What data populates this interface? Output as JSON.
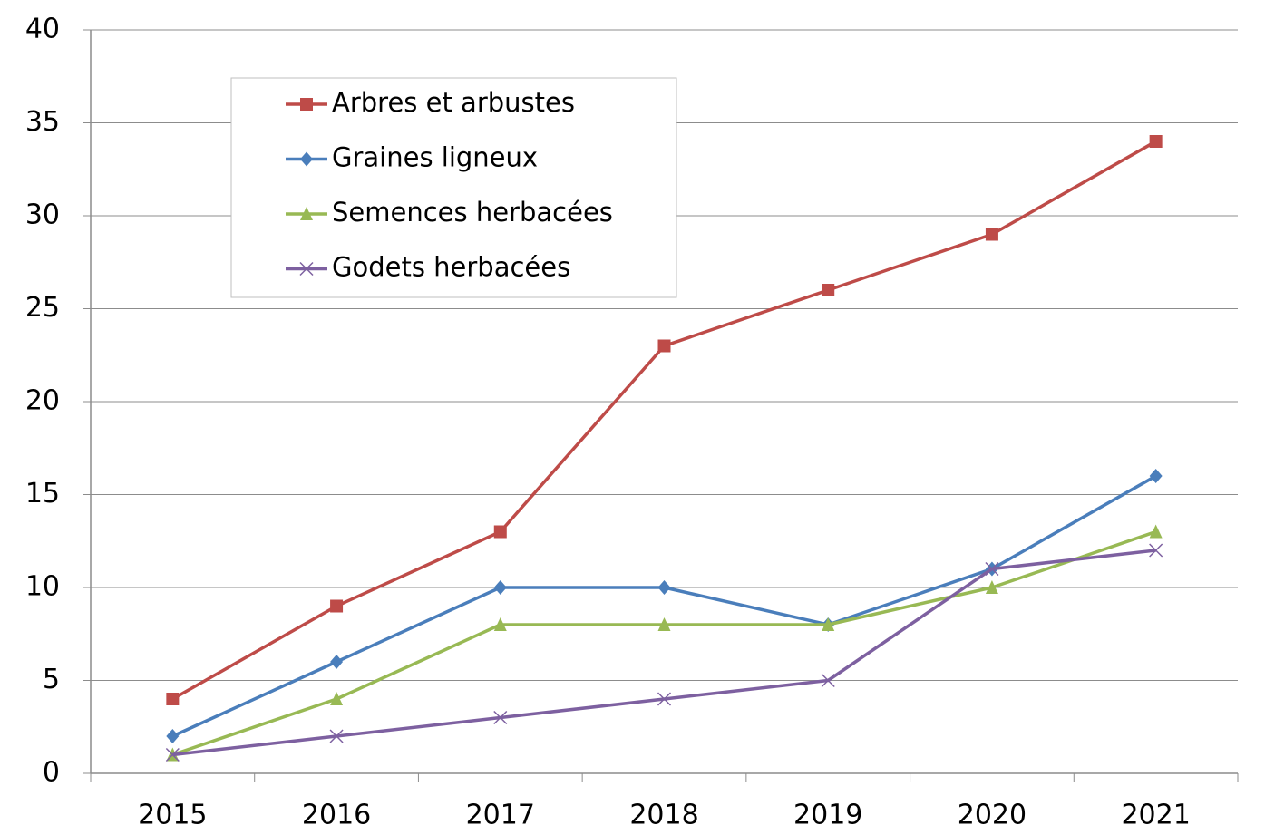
{
  "chart_data": {
    "type": "line",
    "categories": [
      "2015",
      "2016",
      "2017",
      "2018",
      "2019",
      "2020",
      "2021"
    ],
    "series": [
      {
        "name": "Arbres et arbustes",
        "color": "#be4b48",
        "marker": "square",
        "values": [
          4,
          9,
          13,
          23,
          26,
          29,
          34
        ]
      },
      {
        "name": "Graines ligneux",
        "color": "#4a7ebb",
        "marker": "diamond",
        "values": [
          2,
          6,
          10,
          10,
          8,
          11,
          16
        ]
      },
      {
        "name": "Semences herbacées",
        "color": "#98b954",
        "marker": "triangle",
        "values": [
          1,
          4,
          8,
          8,
          8,
          10,
          13
        ]
      },
      {
        "name": "Godets herbacées",
        "color": "#7d60a0",
        "marker": "x",
        "values": [
          1,
          2,
          3,
          4,
          5,
          11,
          12
        ]
      }
    ],
    "ylim": [
      0,
      40
    ],
    "yticks": [
      0,
      5,
      10,
      15,
      20,
      25,
      30,
      35,
      40
    ],
    "grid": true,
    "legend": "upper left"
  }
}
